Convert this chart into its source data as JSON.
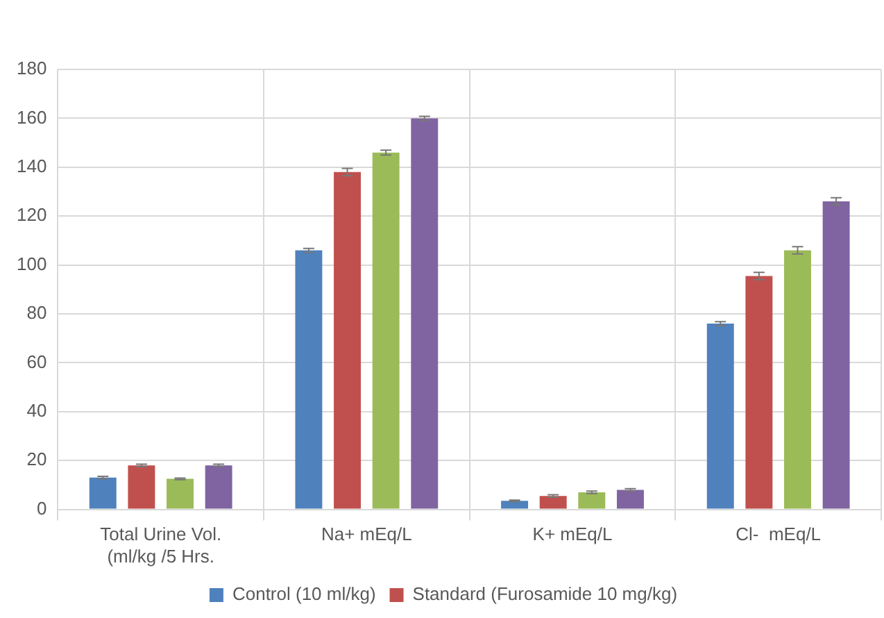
{
  "chart_data": {
    "type": "bar",
    "categories": [
      "Total Urine Vol.\n(ml/kg /5 Hrs.",
      "Na+ mEq/L",
      "K+ mEq/L",
      "Cl-  mEq/L"
    ],
    "series": [
      {
        "name": "Control (10 ml/kg)",
        "color": "#4f81bd",
        "values": [
          13,
          106,
          3.5,
          76
        ],
        "errors": [
          0.5,
          0.8,
          0.3,
          0.8
        ]
      },
      {
        "name": "Standard (Furosamide 10 mg/kg)",
        "color": "#c0504d",
        "values": [
          18,
          138,
          5.5,
          95.5
        ],
        "errors": [
          0.5,
          1.5,
          0.5,
          1.5
        ]
      },
      {
        "color": "#9bbb59",
        "values": [
          12.5,
          146,
          7,
          106
        ],
        "errors": [
          0.3,
          1,
          0.5,
          1.5
        ]
      },
      {
        "color": "#8064a2",
        "values": [
          18,
          160,
          8,
          126
        ],
        "errors": [
          0.5,
          0.8,
          0.5,
          1.5
        ]
      }
    ],
    "ylim": [
      0,
      180
    ],
    "yticks": [
      0,
      20,
      40,
      60,
      80,
      100,
      120,
      140,
      160,
      180
    ],
    "grid": true,
    "legend": "bottom"
  }
}
